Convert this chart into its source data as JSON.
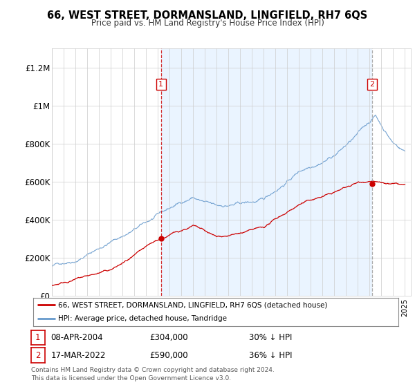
{
  "title": "66, WEST STREET, DORMANSLAND, LINGFIELD, RH7 6QS",
  "subtitle": "Price paid vs. HM Land Registry's House Price Index (HPI)",
  "ylim": [
    0,
    1300000
  ],
  "xlim_start": 1995.0,
  "xlim_end": 2025.5,
  "yticks": [
    0,
    200000,
    400000,
    600000,
    800000,
    1000000,
    1200000
  ],
  "ytick_labels": [
    "£0",
    "£200K",
    "£400K",
    "£600K",
    "£800K",
    "£1M",
    "£1.2M"
  ],
  "sale1_year": 2004.27,
  "sale1_price": 304000,
  "sale1_label": "1",
  "sale2_year": 2022.21,
  "sale2_price": 590000,
  "sale2_label": "2",
  "line_color_property": "#cc0000",
  "line_color_hpi": "#6699cc",
  "shade_color": "#ddeeff",
  "legend_property": "66, WEST STREET, DORMANSLAND, LINGFIELD, RH7 6QS (detached house)",
  "legend_hpi": "HPI: Average price, detached house, Tandridge",
  "copyright": "Contains HM Land Registry data © Crown copyright and database right 2024.\nThis data is licensed under the Open Government Licence v3.0.",
  "background_color": "#ffffff",
  "grid_color": "#cccccc"
}
